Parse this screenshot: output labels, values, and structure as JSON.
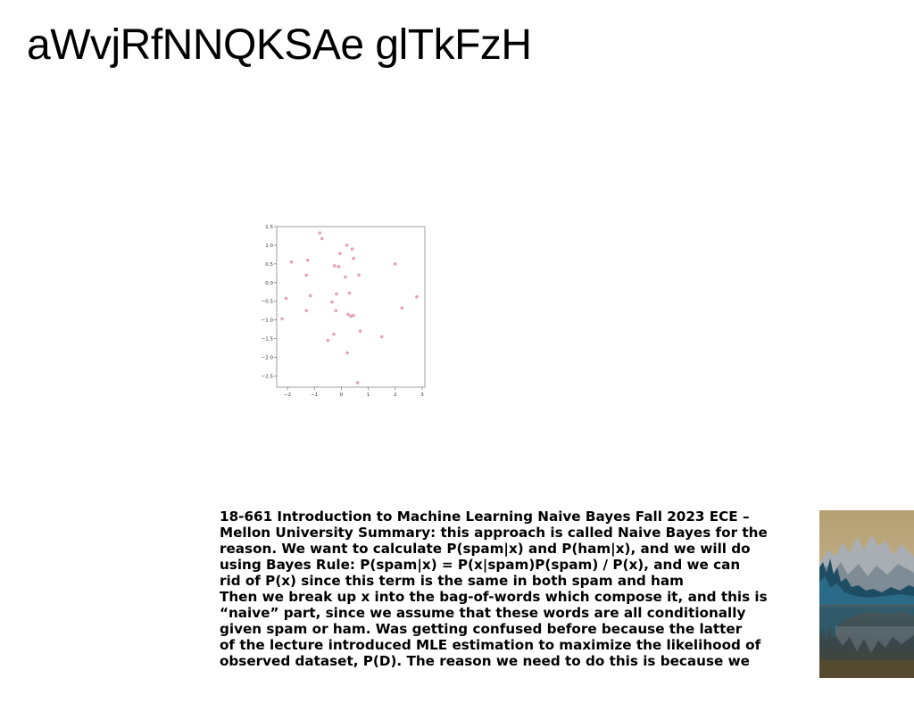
{
  "page": {
    "title": "aWvjRfNNQKSAe glTkFzH"
  },
  "chart_data": {
    "type": "scatter",
    "title": "",
    "xlabel": "",
    "ylabel": "",
    "xlim": [
      -2.4,
      3.1
    ],
    "ylim": [
      -2.8,
      1.5
    ],
    "xticks": [
      "−2",
      "−1",
      "0",
      "1",
      "2",
      "3"
    ],
    "xtick_values": [
      -2,
      -1,
      0,
      1,
      2,
      3
    ],
    "yticks": [
      "1.5",
      "1.0",
      "0.5",
      "0.0",
      "−0.5",
      "−1.0",
      "−1.5",
      "−2.0",
      "−2.5"
    ],
    "ytick_values": [
      1.5,
      1.0,
      0.5,
      0.0,
      -0.5,
      -1.0,
      -1.5,
      -2.0,
      -2.5
    ],
    "grid": false,
    "marker_color": "#e6a0b4",
    "points": [
      [
        -0.8,
        1.33
      ],
      [
        -0.72,
        1.18
      ],
      [
        0.2,
        1.0
      ],
      [
        0.4,
        0.9
      ],
      [
        -0.05,
        0.78
      ],
      [
        -1.85,
        0.55
      ],
      [
        -1.25,
        0.6
      ],
      [
        0.45,
        0.65
      ],
      [
        -0.25,
        0.45
      ],
      [
        -0.1,
        0.43
      ],
      [
        2.0,
        0.5
      ],
      [
        0.15,
        0.15
      ],
      [
        0.65,
        0.2
      ],
      [
        -1.3,
        0.2
      ],
      [
        -2.05,
        -0.42
      ],
      [
        -1.15,
        -0.35
      ],
      [
        -0.18,
        -0.3
      ],
      [
        0.3,
        -0.28
      ],
      [
        2.8,
        -0.38
      ],
      [
        -0.35,
        -0.52
      ],
      [
        2.25,
        -0.68
      ],
      [
        -1.3,
        -0.75
      ],
      [
        -0.2,
        -0.75
      ],
      [
        0.25,
        -0.85
      ],
      [
        0.35,
        -0.9
      ],
      [
        0.45,
        -0.88
      ],
      [
        -2.2,
        -0.97
      ],
      [
        0.7,
        -1.3
      ],
      [
        -0.28,
        -1.38
      ],
      [
        1.5,
        -1.45
      ],
      [
        -0.5,
        -1.55
      ],
      [
        0.22,
        -1.88
      ],
      [
        0.6,
        -2.68
      ]
    ]
  },
  "body_text": {
    "lines": [
      "18-661 Introduction to Machine Learning Naive Bayes Fall 2023 ECE –",
      "Mellon University Summary: this approach is called Naive Bayes for the",
      "reason. We want to calculate P(spam|x) and P(ham|x), and we will do",
      "using Bayes Rule: P(spam|x) = P(x|spam)P(spam) / P(x), and we can",
      "rid of P(x) since this term is the same in both spam and ham",
      "Then we break up x into the bag-of-words which compose it, and this is",
      "“naive” part, since we assume that these words are all conditionally",
      "given spam or ham. Was getting confused before because the latter",
      "of the lecture introduced MLE estimation to maximize the likelihood of",
      "observed dataset, P(D). The reason we need to do this is because we"
    ]
  },
  "photo": {
    "icon": "mountain-lake-photo",
    "colors": {
      "sky": "#b9ab86",
      "mountains": "#9aa3ad",
      "forest": "#1c4a5e",
      "water": "#3b4a4c",
      "ground": "#5a4f32"
    }
  }
}
